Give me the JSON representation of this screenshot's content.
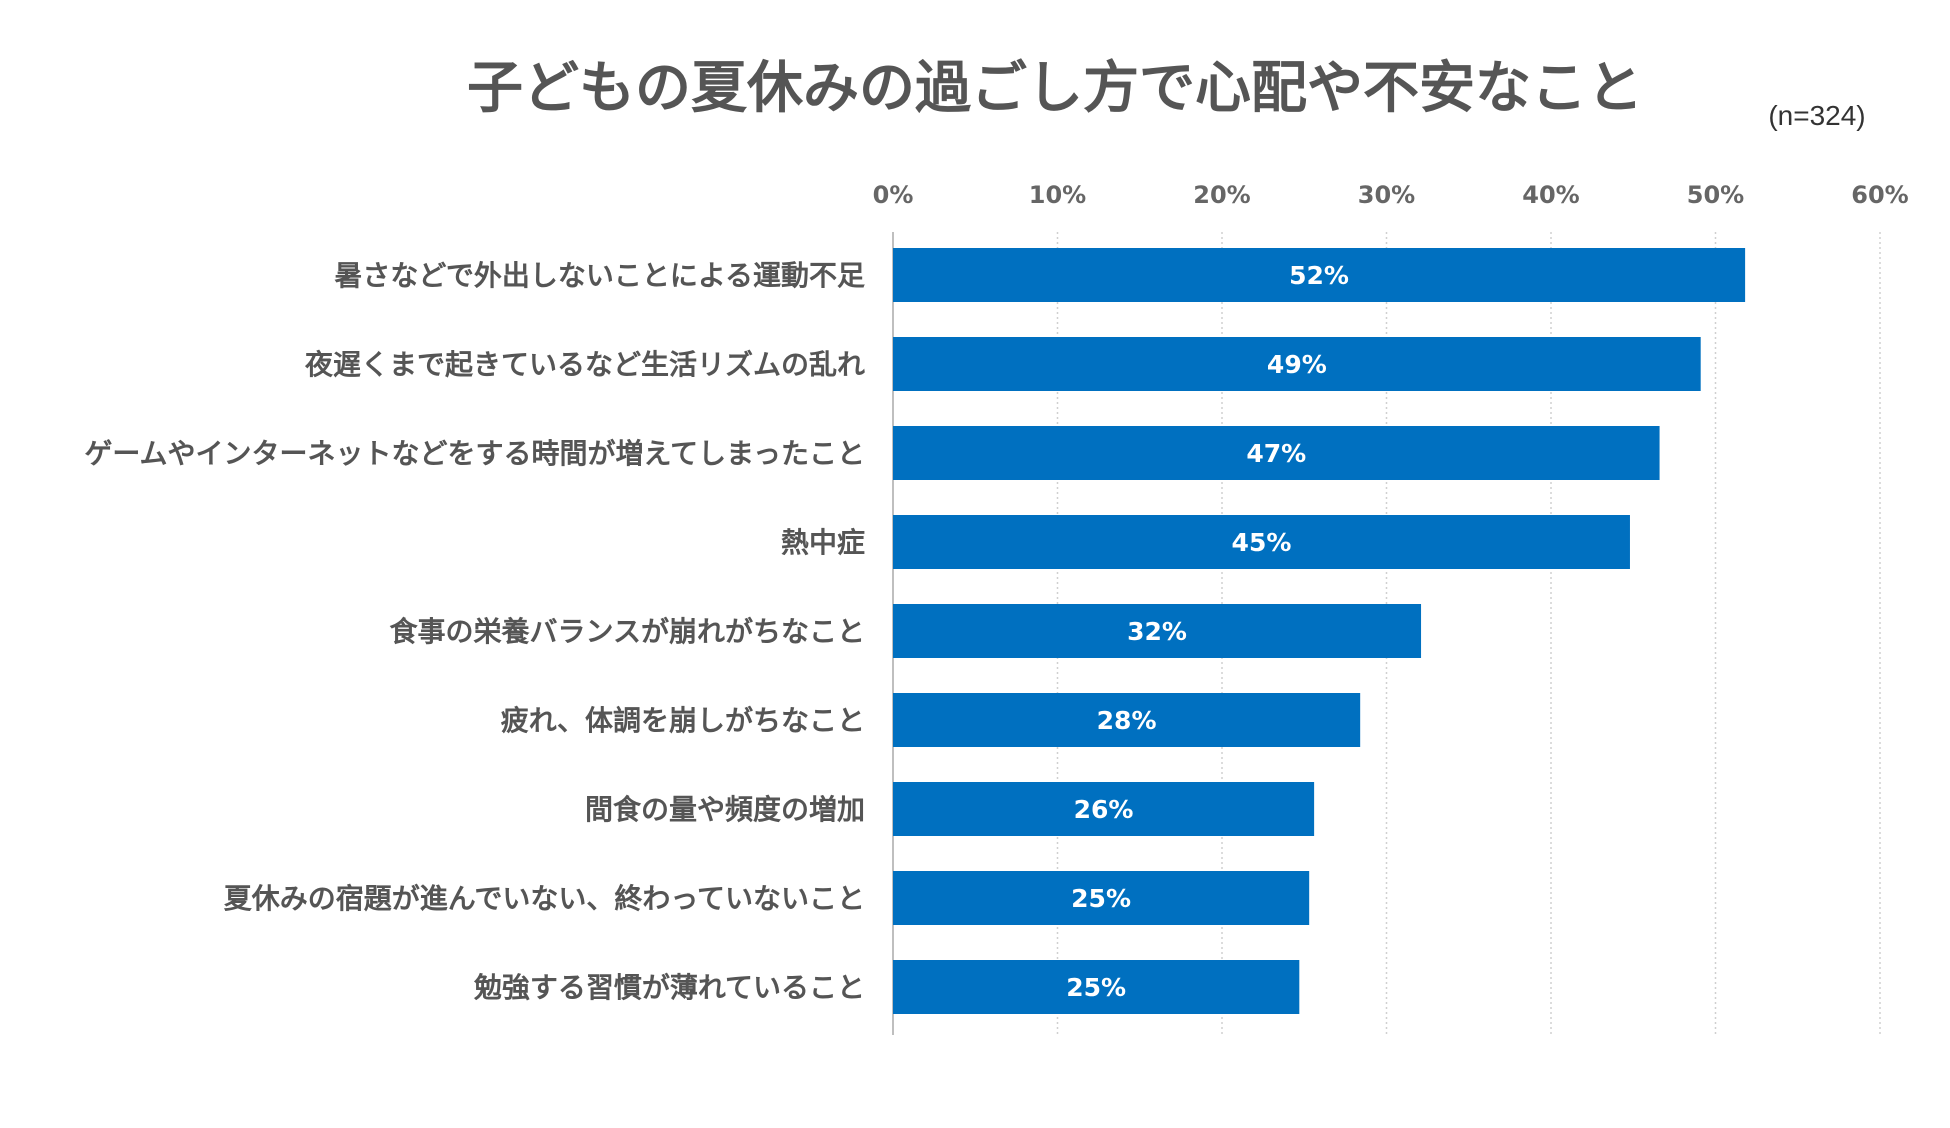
{
  "chart_data": {
    "type": "bar",
    "orientation": "horizontal",
    "title": "子どもの夏休みの過ごし方で心配や不安なこと",
    "sample_size": "(n=324)",
    "categories": [
      "暑さなどで外出しないことによる運動不足",
      "夜遅くまで起きているなど生活リズムの乱れ",
      "ゲームやインターネットなどをする時間が増えてしまったこと",
      "熱中症",
      "食事の栄養バランスが崩れがちなこと",
      "疲れ、体調を崩しがちなこと",
      "間食の量や頻度の増加",
      "夏休みの宿題が進んでいない、終わっていないこと",
      "勉強する習慣が薄れていること"
    ],
    "values": [
      51.8,
      49.1,
      46.6,
      44.8,
      32.1,
      28.4,
      25.6,
      25.3,
      24.7
    ],
    "value_labels": [
      "52%",
      "49%",
      "47%",
      "45%",
      "32%",
      "28%",
      "26%",
      "25%",
      "25%"
    ],
    "x_ticks": [
      "0%",
      "10%",
      "20%",
      "30%",
      "40%",
      "50%",
      "60%"
    ],
    "xlim": [
      0,
      60
    ],
    "grid": true,
    "bar_color": "#0070C0",
    "grid_color": "#D0D0D0",
    "axis_color": "#BFBFBF"
  }
}
